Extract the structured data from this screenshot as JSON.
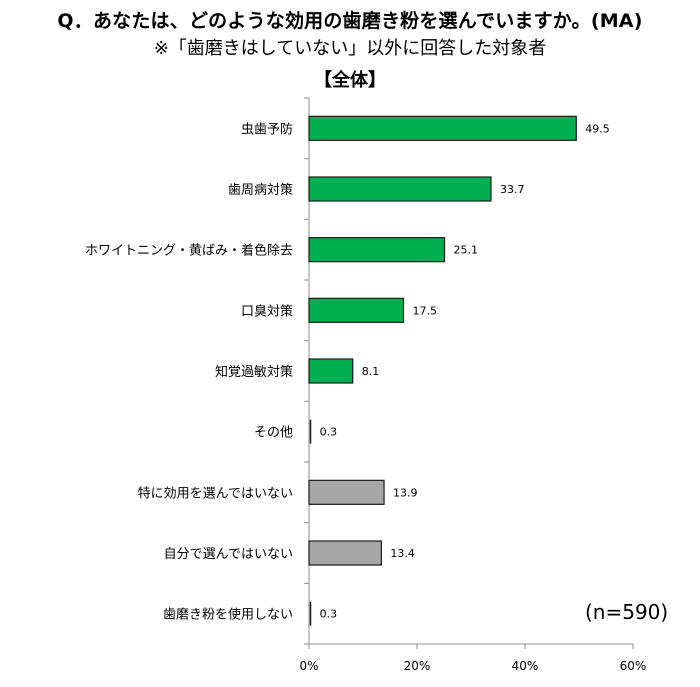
{
  "header": {
    "title": "Q．あなたは、どのような効用の歯磨き粉を選んでいますか。(MA)",
    "subtitle": "※「歯磨きはしていない」以外に回答した対象者",
    "section": "【全体】"
  },
  "sample": {
    "label": "(n=590)"
  },
  "colors": {
    "primary_bar": "#00b050",
    "secondary_bar": "#a6a6a6",
    "bar_border": "#1a1a1a",
    "axis": "#8c8c8c"
  },
  "chart_data": {
    "type": "bar",
    "orientation": "horizontal",
    "title": "Q．あなたは、どのような効用の歯磨き粉を選んでいますか。(MA)",
    "subtitle": "※「歯磨きはしていない」以外に回答した対象者",
    "annotation": "(n=590)",
    "xlabel": "",
    "ylabel": "",
    "xlim": [
      0,
      60
    ],
    "x_ticks": [
      "0%",
      "20%",
      "40%",
      "60%"
    ],
    "x_tick_values": [
      0,
      20,
      40,
      60
    ],
    "grid": false,
    "legend": null,
    "categories": [
      "虫歯予防",
      "歯周病対策",
      "ホワイトニング・黄ばみ・着色除去",
      "口臭対策",
      "知覚過敏対策",
      "その他",
      "特に効用を選んではいない",
      "自分で選んではいない",
      "歯磨き粉を使用しない"
    ],
    "values": [
      49.5,
      33.7,
      25.1,
      17.5,
      8.1,
      0.3,
      13.9,
      13.4,
      0.3
    ],
    "value_labels": [
      "49.5",
      "33.7",
      "25.1",
      "17.5",
      "8.1",
      "0.3",
      "13.9",
      "13.4",
      "0.3"
    ],
    "bar_colors": [
      "#00b050",
      "#00b050",
      "#00b050",
      "#00b050",
      "#00b050",
      "#00b050",
      "#a6a6a6",
      "#a6a6a6",
      "#a6a6a6"
    ]
  }
}
